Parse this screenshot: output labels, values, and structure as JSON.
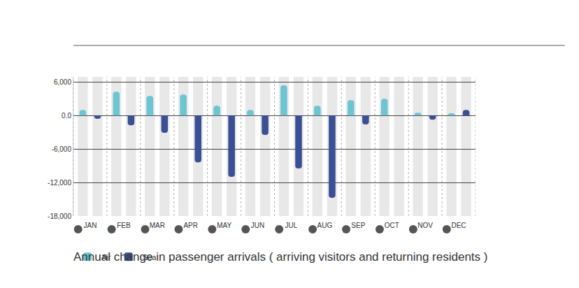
{
  "chart_data": {
    "type": "bar",
    "title": "Annual change in passenger arrivals ( arriving visitors and returning residents )",
    "categories": [
      "JAN",
      "FEB",
      "MAR",
      "APR",
      "MAY",
      "JUN",
      "JUL",
      "AUG",
      "SEP",
      "OCT",
      "NOV",
      "DEC"
    ],
    "series": [
      {
        "name": "Air",
        "color": "#6cc5d1",
        "values": [
          1000,
          4250,
          3500,
          3750,
          1750,
          1000,
          5400,
          1750,
          2750,
          3000,
          500,
          400
        ]
      },
      {
        "name": "Sea",
        "color": "#3b4f94",
        "values": [
          -600,
          -1750,
          -3100,
          -8400,
          -11000,
          -3500,
          -9500,
          -14750,
          -1600,
          0,
          -750,
          1000
        ]
      }
    ],
    "ylim": [
      -18000,
      6900
    ],
    "yticks": [
      {
        "value": 6000,
        "label": "6,000"
      },
      {
        "value": 0,
        "label": "0.0"
      },
      {
        "value": -6000,
        "label": "-6,000"
      },
      {
        "value": -12000,
        "label": "-12,000"
      },
      {
        "value": -18000,
        "label": "-18,000"
      }
    ],
    "grid": true,
    "legend": "bottom left"
  }
}
